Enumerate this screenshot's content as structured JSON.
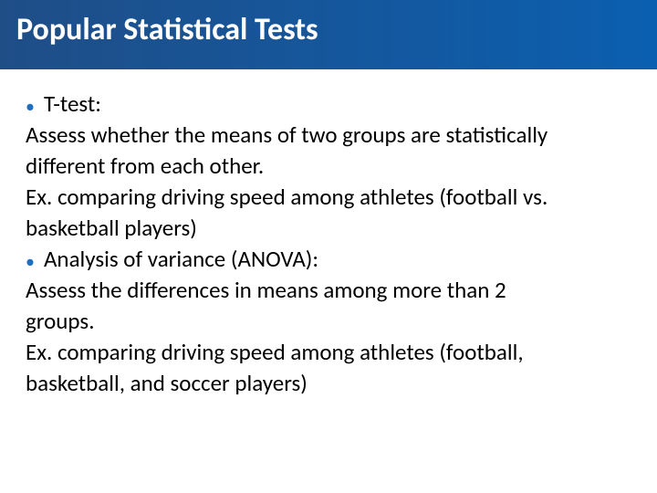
{
  "slide": {
    "title": "Popular Statistical Tests",
    "title_color": "#ffffff",
    "title_fontsize": 34,
    "title_fontweight": 700,
    "title_bar_gradient_start": "#1f4e87",
    "title_bar_gradient_end": "#0b5fb0",
    "title_bar_height": 78,
    "body_fontsize": 25,
    "body_color": "#000000",
    "bullet_color": "#1f6fc1",
    "bullet_char": "•",
    "bullet_label_1": "T-test:",
    "desc_1a": "Assess whether the means of two groups are statistically",
    "desc_1b": "different from each other.",
    "ex_1a": "Ex. comparing driving speed among athletes (football vs.",
    "ex_1b": "basketball players)",
    "bullet_label_2": "Analysis of variance (ANOVA):",
    "desc_2a": "Assess the differences in means among more than 2",
    "desc_2b": "groups.",
    "ex_2a": "Ex. comparing driving speed among athletes (football,",
    "ex_2b": "basketball, and soccer players)"
  }
}
